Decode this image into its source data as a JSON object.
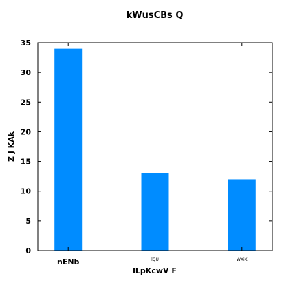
{
  "chart_data": {
    "type": "bar",
    "title": "kWusCBs Q",
    "xlabel": "lLpKcwV F",
    "ylabel": "Z J KAk",
    "categories": [
      "nENb",
      "lQU",
      "WXiK"
    ],
    "values": [
      34,
      13,
      12
    ],
    "ylim": [
      0,
      35
    ],
    "yticks": [
      0,
      5,
      10,
      15,
      20,
      25,
      30,
      35
    ],
    "bar_color": "#008cff",
    "grid": false
  }
}
